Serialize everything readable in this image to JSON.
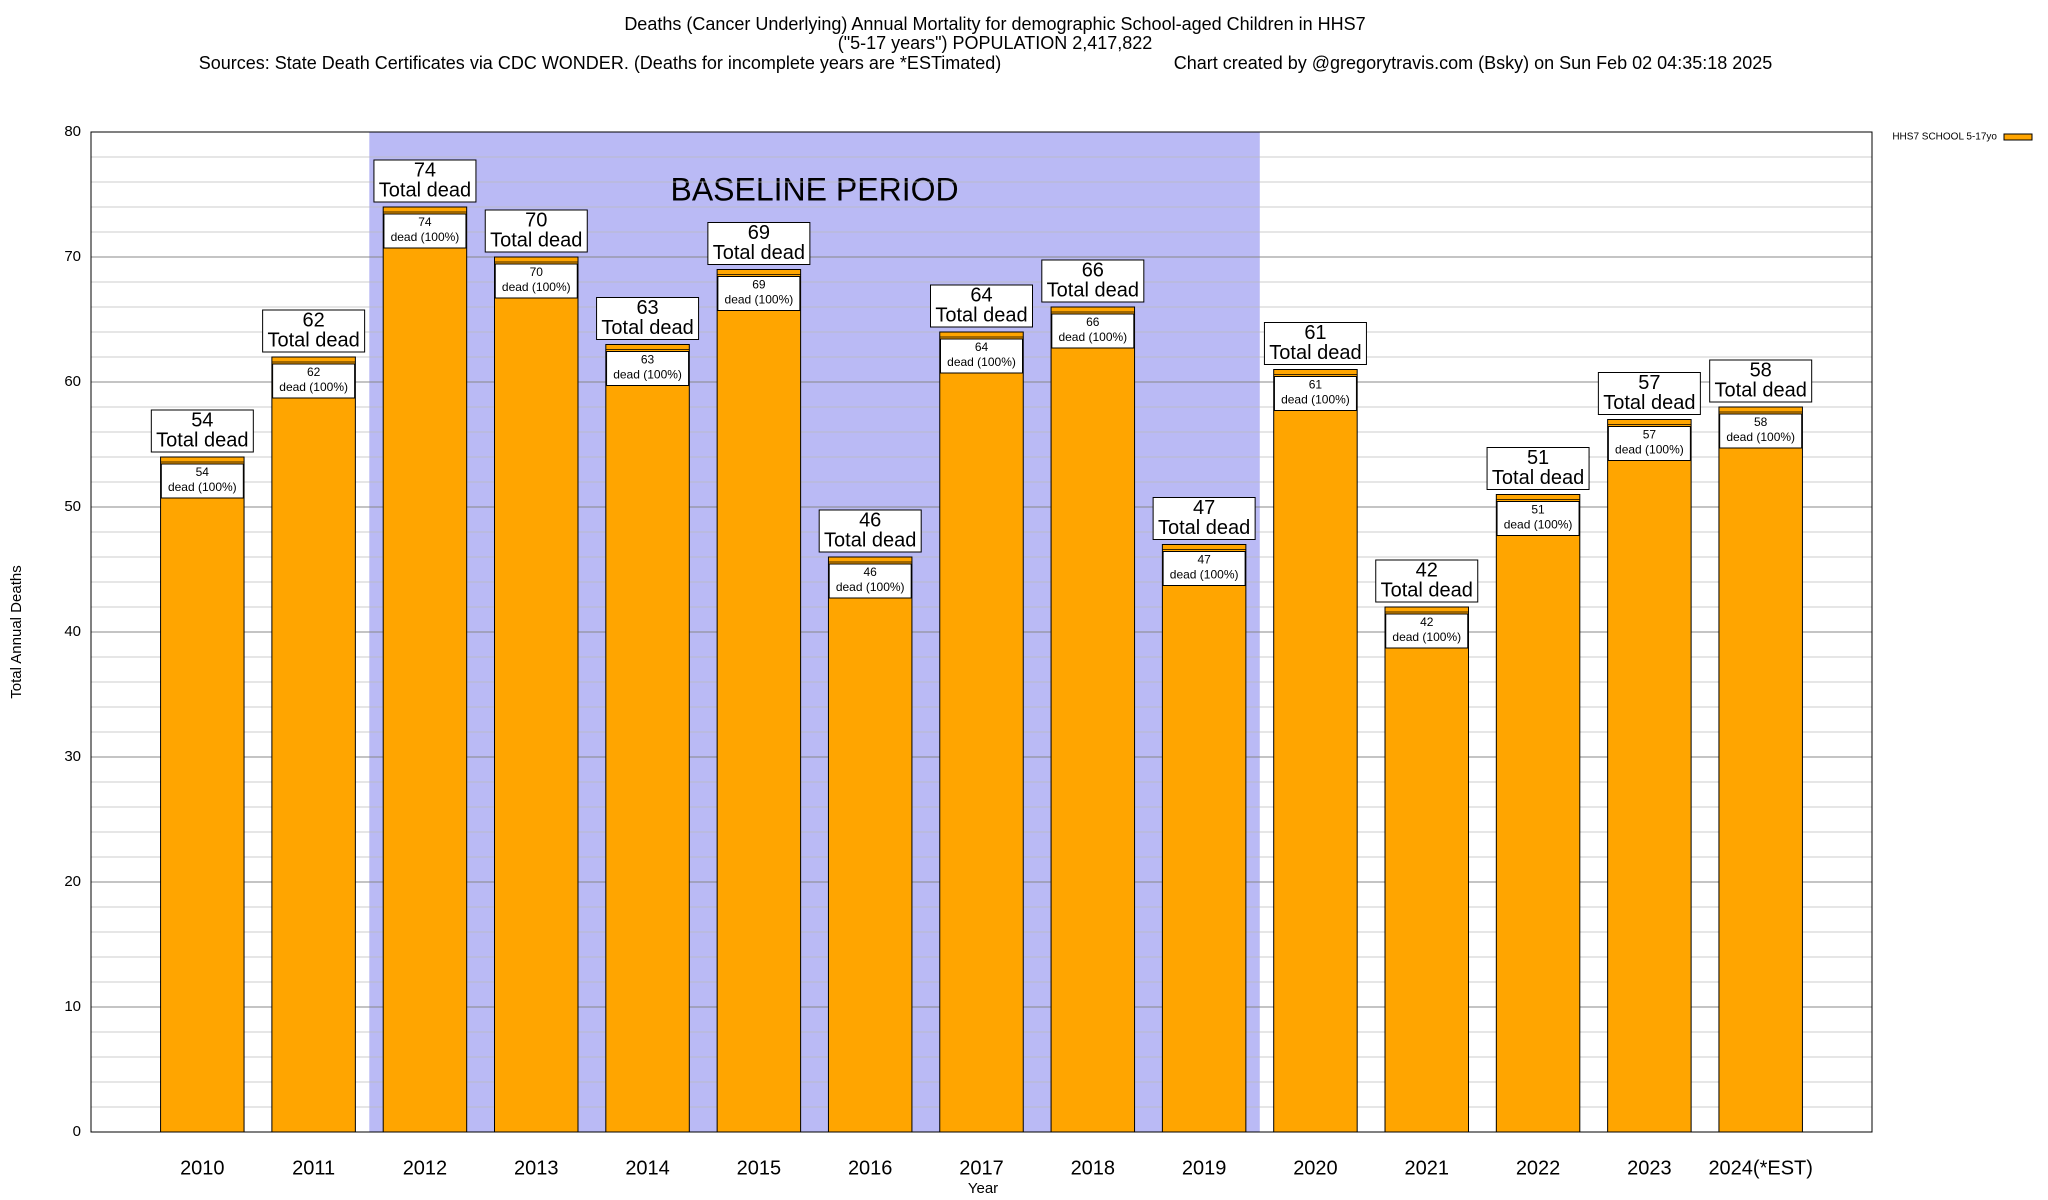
{
  "chart_data": {
    "type": "bar",
    "title": "Deaths (Cancer Underlying) Annual Mortality for demographic School-aged Children in HHS7",
    "subtitle": "(\"5-17 years\") POPULATION 2,417,822",
    "source": "Sources: State Death Certificates via CDC WONDER. (Deaths for incomplete years are *ESTimated)",
    "credit": "Chart created by @gregorytravis.com (Bsky) on Sun Feb 02 04:35:18 2025",
    "x_label": "Year",
    "y_label": "Total Annual Deaths",
    "categories": [
      "2010",
      "2011",
      "2012",
      "2013",
      "2014",
      "2015",
      "2016",
      "2017",
      "2018",
      "2019",
      "2020",
      "2021",
      "2022",
      "2023",
      "2024(*EST)"
    ],
    "series": [
      {
        "name": "HHS7 SCHOOL 5-17yo",
        "color": "#ffa500",
        "values": [
          54,
          62,
          74,
          70,
          63,
          69,
          46,
          64,
          66,
          47,
          61,
          42,
          51,
          57,
          58
        ]
      }
    ],
    "total_label": "Total dead",
    "inner_label": "dead (100%)",
    "baseline_period": {
      "label": "BASELINE PERIOD",
      "from": "2012",
      "to": "2019",
      "color": "#babaf5"
    },
    "ylim": [
      0,
      80
    ],
    "yticks": [
      0,
      10,
      20,
      30,
      40,
      50,
      60,
      70,
      80
    ],
    "yticks_minor": [
      2,
      4,
      6,
      8,
      12,
      14,
      16,
      18,
      22,
      24,
      26,
      28,
      32,
      34,
      36,
      38,
      42,
      44,
      46,
      48,
      52,
      54,
      56,
      58,
      62,
      64,
      66,
      68,
      72,
      74,
      76,
      78
    ],
    "grid": true,
    "legend": "top-right"
  }
}
